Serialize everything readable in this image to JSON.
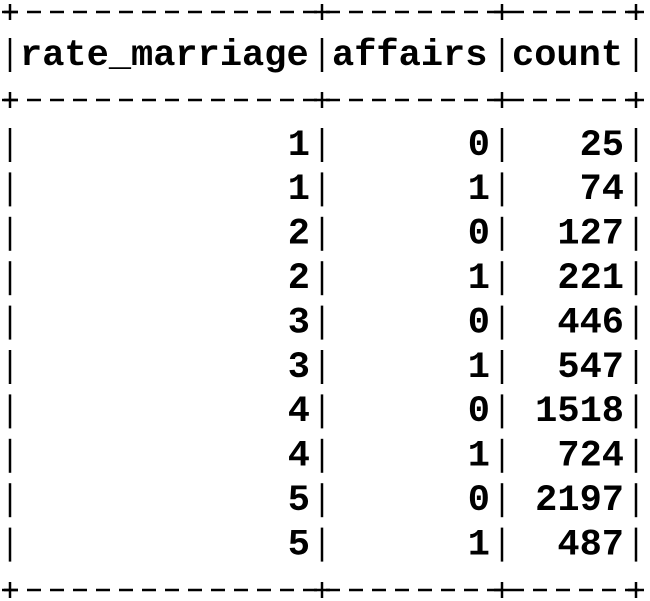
{
  "table": {
    "columns": [
      "rate_marriage",
      "affairs",
      "count"
    ],
    "rows": [
      [
        1,
        0,
        25
      ],
      [
        1,
        1,
        74
      ],
      [
        2,
        0,
        127
      ],
      [
        2,
        1,
        221
      ],
      [
        3,
        0,
        446
      ],
      [
        3,
        1,
        547
      ],
      [
        4,
        0,
        1518
      ],
      [
        4,
        1,
        724
      ],
      [
        5,
        0,
        2197
      ],
      [
        5,
        1,
        487
      ]
    ]
  }
}
